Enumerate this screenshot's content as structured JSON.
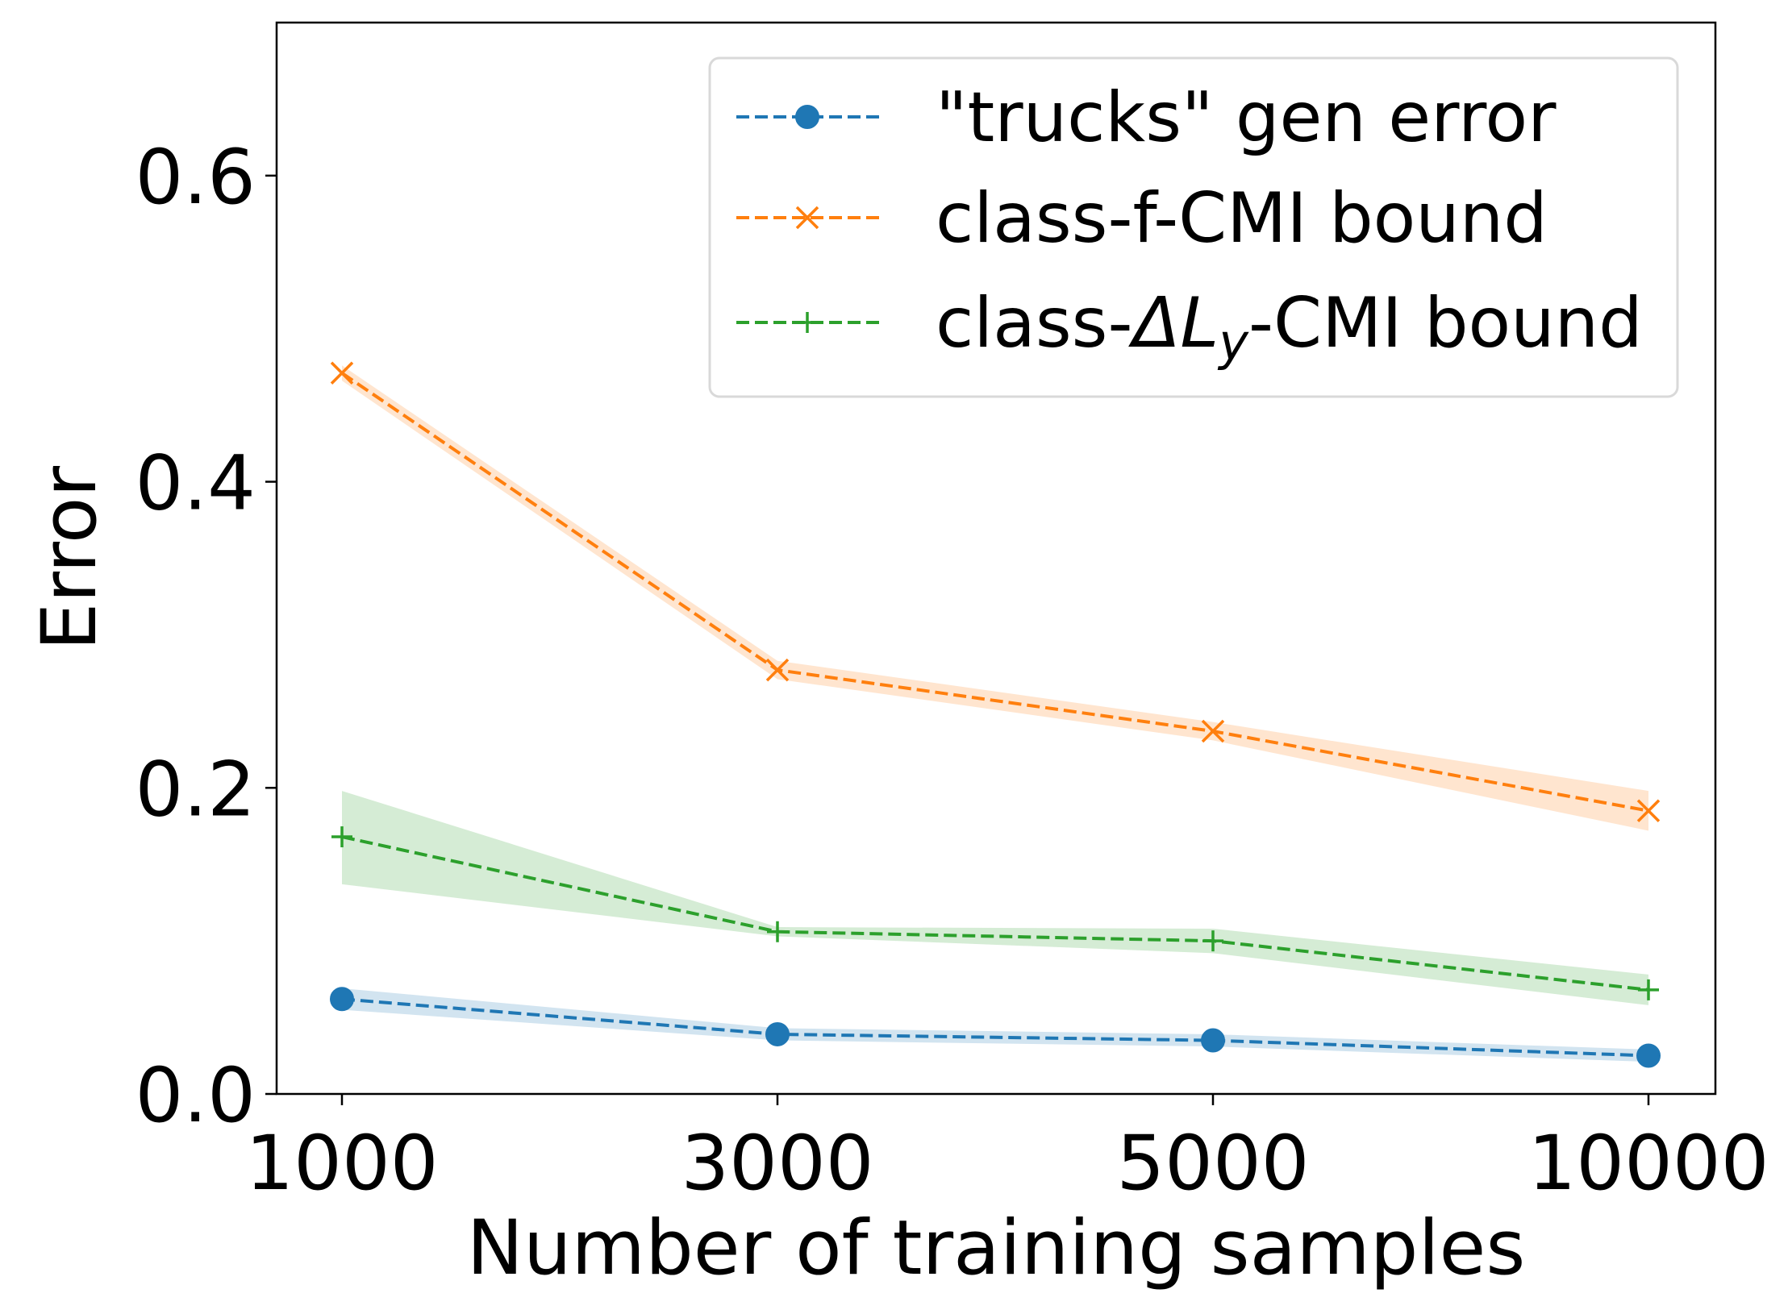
{
  "chart_data": {
    "type": "line",
    "xlabel": "Number of training samples",
    "ylabel": "Error",
    "categories": [
      "1000",
      "3000",
      "5000",
      "10000"
    ],
    "yticks": [
      "0.0",
      "0.2",
      "0.4",
      "0.6"
    ],
    "ylim": [
      0,
      0.7
    ],
    "grid": false,
    "legend_position": "top-right",
    "series": [
      {
        "name": "\"trucks\" gen error",
        "color": "#1f77b4",
        "marker": "circle",
        "linestyle": "dashed",
        "values": [
          0.062,
          0.039,
          0.035,
          0.025
        ],
        "band_upper": [
          0.069,
          0.043,
          0.039,
          0.029
        ],
        "band_lower": [
          0.055,
          0.035,
          0.031,
          0.021
        ]
      },
      {
        "name": "class-f-CMI bound",
        "color": "#ff7f0e",
        "marker": "x",
        "linestyle": "dashed",
        "values": [
          0.471,
          0.277,
          0.237,
          0.185
        ],
        "band_upper": [
          0.476,
          0.283,
          0.243,
          0.198
        ],
        "band_lower": [
          0.466,
          0.271,
          0.231,
          0.172
        ]
      },
      {
        "name_parts": [
          "class-",
          "ΔL",
          "y",
          "-CMI bound"
        ],
        "color": "#2ca02c",
        "marker": "plus",
        "linestyle": "dashed",
        "values": [
          0.168,
          0.106,
          0.1,
          0.068
        ],
        "band_upper": [
          0.198,
          0.109,
          0.108,
          0.078
        ],
        "band_lower": [
          0.137,
          0.103,
          0.092,
          0.058
        ]
      }
    ]
  }
}
